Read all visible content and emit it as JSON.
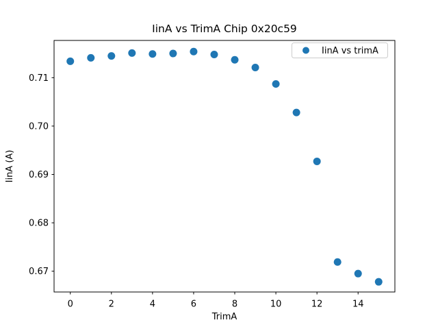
{
  "figure": {
    "background": "#ffffff",
    "text_color": "#000000",
    "spine_color": "#000000"
  },
  "chart_data": {
    "type": "scatter",
    "title": "IinA vs TrimA Chip 0x20c59",
    "xlabel": "TrimA",
    "ylabel": "IinA (A)",
    "grid": false,
    "legend": {
      "label": "IinA vs trimA",
      "position": "upper right",
      "border_color": "#cccccc",
      "background": "#ffffff"
    },
    "series": [
      {
        "name": "IinA vs trimA",
        "marker": "circle",
        "color": "#1f77b4",
        "x": [
          0,
          1,
          2,
          3,
          4,
          5,
          6,
          7,
          8,
          9,
          10,
          11,
          12,
          13,
          14,
          15
        ],
        "y": [
          0.7134,
          0.7141,
          0.7145,
          0.7151,
          0.7149,
          0.715,
          0.7154,
          0.7148,
          0.7137,
          0.7121,
          0.7087,
          0.7028,
          0.6927,
          0.6719,
          0.6695,
          0.6678
        ]
      }
    ],
    "xlim": [
      -0.79,
      15.79
    ],
    "ylim": [
      0.6657,
      0.7177
    ],
    "xticks": [
      0,
      2,
      4,
      6,
      8,
      10,
      12,
      14
    ],
    "yticks": [
      0.67,
      0.68,
      0.69,
      0.7,
      0.71
    ],
    "ytick_decimals": 2
  }
}
